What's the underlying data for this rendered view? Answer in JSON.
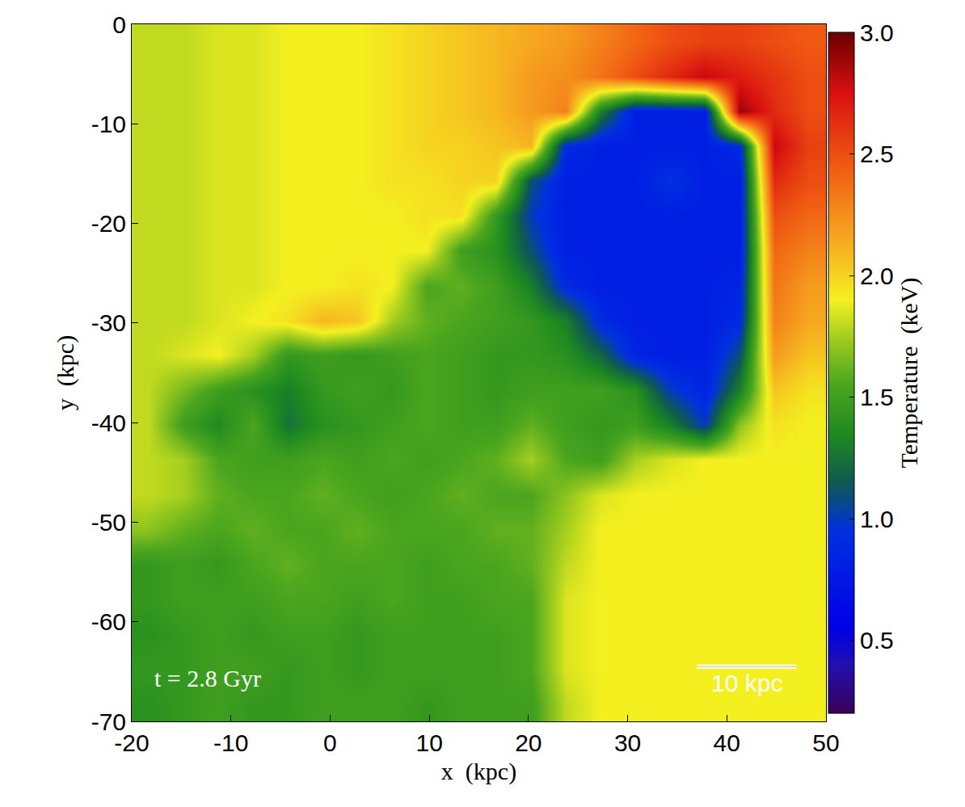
{
  "chart_data": {
    "type": "heatmap",
    "xlabel": "x  (kpc)",
    "ylabel": "y  (kpc)",
    "xlim": [
      -20,
      50
    ],
    "ylim": [
      -70,
      0
    ],
    "xticks": [
      -20,
      -10,
      0,
      10,
      20,
      30,
      40,
      50
    ],
    "yticks": [
      -70,
      -60,
      -50,
      -40,
      -30,
      -20,
      -10,
      0
    ],
    "x": [
      -18.25,
      -14.75,
      -11.25,
      -7.75,
      -4.25,
      -0.75,
      2.75,
      6.25,
      9.75,
      13.25,
      16.75,
      20.25,
      23.75,
      27.25,
      30.75,
      34.25,
      37.75,
      41.25,
      44.75,
      48.25
    ],
    "y": [
      -68.25,
      -64.75,
      -61.25,
      -57.75,
      -54.25,
      -50.75,
      -47.25,
      -43.75,
      -40.25,
      -36.75,
      -33.25,
      -29.75,
      -26.25,
      -22.75,
      -19.25,
      -15.75,
      -12.25,
      -8.75,
      -5.25,
      -1.75
    ],
    "z": [
      [
        1.4,
        1.45,
        1.5,
        1.45,
        1.45,
        1.5,
        1.5,
        1.5,
        1.45,
        1.5,
        1.5,
        1.5,
        1.8,
        1.9,
        1.9,
        1.9,
        1.9,
        1.9,
        1.9,
        1.9
      ],
      [
        1.45,
        1.45,
        1.5,
        1.5,
        1.45,
        1.5,
        1.45,
        1.5,
        1.5,
        1.5,
        1.5,
        1.55,
        1.85,
        1.9,
        1.9,
        1.9,
        1.9,
        1.9,
        1.9,
        1.9
      ],
      [
        1.4,
        1.45,
        1.5,
        1.45,
        1.5,
        1.5,
        1.45,
        1.5,
        1.5,
        1.5,
        1.5,
        1.55,
        1.85,
        1.9,
        1.9,
        1.9,
        1.9,
        1.9,
        1.9,
        1.9
      ],
      [
        1.45,
        1.5,
        1.5,
        1.5,
        1.55,
        1.55,
        1.5,
        1.55,
        1.5,
        1.5,
        1.55,
        1.55,
        1.85,
        1.9,
        1.9,
        1.9,
        1.9,
        1.9,
        1.9,
        1.9
      ],
      [
        1.45,
        1.5,
        1.45,
        1.55,
        1.6,
        1.55,
        1.55,
        1.55,
        1.5,
        1.55,
        1.55,
        1.6,
        1.8,
        1.9,
        1.9,
        1.9,
        1.9,
        1.9,
        1.9,
        1.9
      ],
      [
        1.7,
        1.6,
        1.55,
        1.6,
        1.55,
        1.55,
        1.6,
        1.55,
        1.55,
        1.55,
        1.6,
        1.6,
        1.75,
        1.9,
        1.9,
        1.9,
        1.9,
        1.9,
        1.9,
        1.9
      ],
      [
        1.8,
        1.75,
        1.6,
        1.55,
        1.55,
        1.6,
        1.55,
        1.5,
        1.55,
        1.6,
        1.55,
        1.55,
        1.7,
        1.85,
        1.9,
        1.9,
        1.9,
        1.9,
        1.9,
        1.9
      ],
      [
        1.8,
        1.75,
        1.55,
        1.5,
        1.5,
        1.55,
        1.5,
        1.55,
        1.5,
        1.55,
        1.6,
        1.75,
        1.55,
        1.5,
        1.75,
        1.85,
        1.9,
        1.9,
        1.9,
        1.9
      ],
      [
        1.8,
        1.5,
        1.35,
        1.55,
        1.25,
        1.4,
        1.45,
        1.5,
        1.55,
        1.5,
        1.5,
        1.6,
        1.5,
        1.45,
        1.5,
        1.3,
        1.0,
        1.7,
        1.95,
        1.9
      ],
      [
        1.8,
        1.65,
        1.5,
        1.4,
        1.3,
        1.45,
        1.5,
        1.45,
        1.55,
        1.5,
        1.45,
        1.5,
        1.5,
        1.5,
        1.4,
        1.0,
        0.85,
        1.3,
        2.05,
        1.95
      ],
      [
        1.8,
        1.85,
        1.9,
        1.75,
        1.45,
        1.5,
        1.45,
        1.5,
        1.55,
        1.5,
        1.45,
        1.45,
        1.4,
        1.2,
        0.85,
        0.8,
        0.8,
        1.1,
        2.2,
        2.05
      ],
      [
        1.8,
        1.8,
        1.85,
        1.9,
        1.95,
        2.1,
        2.05,
        1.75,
        1.6,
        1.55,
        1.5,
        1.45,
        1.3,
        0.9,
        0.8,
        0.8,
        0.8,
        0.9,
        2.3,
        2.15
      ],
      [
        1.8,
        1.8,
        1.85,
        1.85,
        1.9,
        1.9,
        1.95,
        1.9,
        1.55,
        1.6,
        1.5,
        1.3,
        0.9,
        0.8,
        0.8,
        0.8,
        0.8,
        0.85,
        2.35,
        2.2
      ],
      [
        1.8,
        1.8,
        1.85,
        1.85,
        1.9,
        1.9,
        1.9,
        1.9,
        1.9,
        1.5,
        1.4,
        1.1,
        0.8,
        0.8,
        0.8,
        0.8,
        0.8,
        0.8,
        2.4,
        2.3
      ],
      [
        1.8,
        1.8,
        1.85,
        1.85,
        1.9,
        1.9,
        1.9,
        1.9,
        1.95,
        1.95,
        1.45,
        1.0,
        0.8,
        0.8,
        0.8,
        0.8,
        0.8,
        0.8,
        2.5,
        2.4
      ],
      [
        1.8,
        1.8,
        1.85,
        1.85,
        1.9,
        1.9,
        1.9,
        1.95,
        1.95,
        2.0,
        2.0,
        1.1,
        0.8,
        0.8,
        0.8,
        0.95,
        0.8,
        0.8,
        2.65,
        2.5
      ],
      [
        1.8,
        1.8,
        1.85,
        1.85,
        1.9,
        1.9,
        1.9,
        1.95,
        2.0,
        2.0,
        2.05,
        2.1,
        0.9,
        0.8,
        0.8,
        0.8,
        0.8,
        0.9,
        2.8,
        2.55
      ],
      [
        1.8,
        1.8,
        1.85,
        1.85,
        1.9,
        1.9,
        1.9,
        1.95,
        2.0,
        2.05,
        2.1,
        2.2,
        2.3,
        1.3,
        0.8,
        0.8,
        0.8,
        2.9,
        2.65,
        2.5
      ],
      [
        1.8,
        1.8,
        1.85,
        1.85,
        1.9,
        1.9,
        1.9,
        1.95,
        2.0,
        2.05,
        2.1,
        2.2,
        2.25,
        2.35,
        2.5,
        2.65,
        2.8,
        2.7,
        2.6,
        2.5
      ],
      [
        1.8,
        1.8,
        1.85,
        1.85,
        1.9,
        1.9,
        1.9,
        1.95,
        2.0,
        2.05,
        2.1,
        2.15,
        2.2,
        2.3,
        2.4,
        2.5,
        2.55,
        2.55,
        2.5,
        2.45
      ]
    ],
    "colorbar": {
      "title": "Temperature  (keV)",
      "range": [
        0.2,
        3.0
      ],
      "ticks": [
        {
          "value": 0.5,
          "label": "0.5"
        },
        {
          "value": 1,
          "label": "1.0"
        },
        {
          "value": 1.5,
          "label": "1.5"
        },
        {
          "value": 2,
          "label": "2.0"
        },
        {
          "value": 2.5,
          "label": "2.5"
        },
        {
          "value": 3,
          "label": "3.0"
        }
      ]
    },
    "annotations": [
      {
        "text": "t = 2.8 Gyr"
      }
    ],
    "scale_bar": {
      "x0": 37,
      "x1": 47,
      "y": -64.5,
      "label": "10 kpc"
    }
  }
}
